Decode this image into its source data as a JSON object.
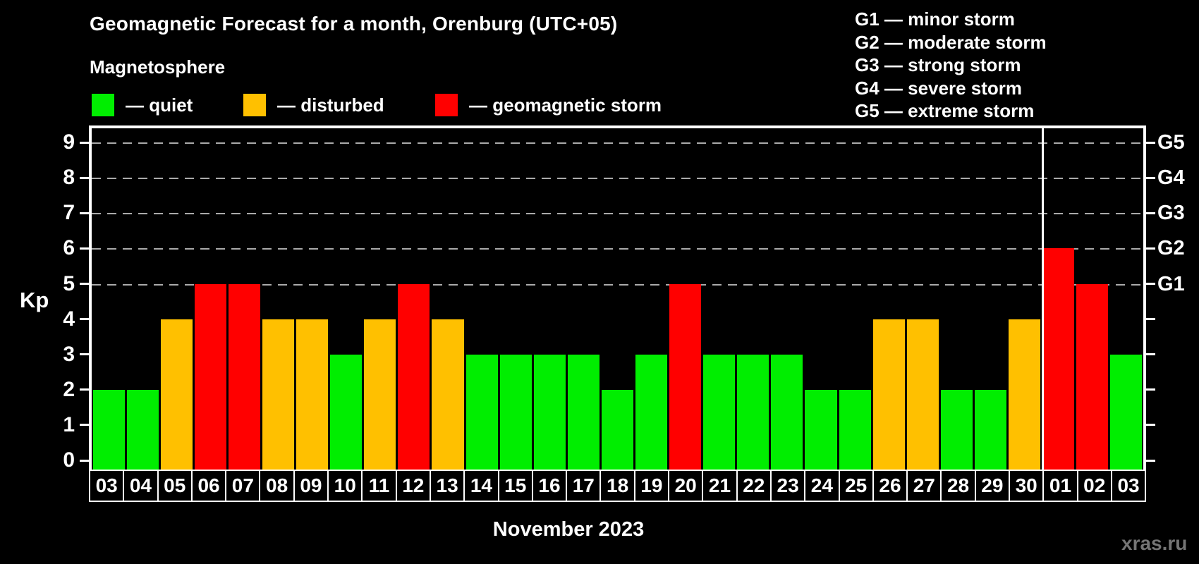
{
  "title": "Geomagnetic Forecast for a month, Orenburg (UTC+05)",
  "subtitle": "Magnetosphere",
  "legend": {
    "items": [
      {
        "key": "quiet",
        "label": "— quiet",
        "x": 130
      },
      {
        "key": "disturbed",
        "label": "— disturbed",
        "x": 345
      },
      {
        "key": "storm",
        "label": "— geomagnetic storm",
        "x": 617
      }
    ]
  },
  "g_legend": [
    "G1 — minor storm",
    "G2 — moderate storm",
    "G3 — strong storm",
    "G4 — severe storm",
    "G5 — extreme storm"
  ],
  "colors": {
    "quiet": "#00ee00",
    "disturbed": "#ffc000",
    "storm": "#ff0000",
    "frame": "#ffffff",
    "grid": "#aaaaaa",
    "background": "#000000",
    "watermark": "#757575"
  },
  "chart_data": {
    "type": "bar",
    "title": "Geomagnetic Forecast for a month, Orenburg (UTC+05)",
    "ylabel": "Kp",
    "xlabel": "November 2023",
    "ylim": [
      0,
      9
    ],
    "yticks": [
      0,
      1,
      2,
      3,
      4,
      5,
      6,
      7,
      8,
      9
    ],
    "gridlines_kp": [
      5,
      6,
      7,
      8,
      9
    ],
    "grid_style": "dashed horizontal gray lines at Kp 5..9 only",
    "legend_position": "top-left (Magnetosphere) and top-right (G-scale)",
    "right_axis": [
      {
        "label": "G1",
        "kp": 5
      },
      {
        "label": "G2",
        "kp": 6
      },
      {
        "label": "G3",
        "kp": 7
      },
      {
        "label": "G4",
        "kp": 8
      },
      {
        "label": "G5",
        "kp": 9
      }
    ],
    "categories": [
      "03",
      "04",
      "05",
      "06",
      "07",
      "08",
      "09",
      "10",
      "11",
      "12",
      "13",
      "14",
      "15",
      "16",
      "17",
      "18",
      "19",
      "20",
      "21",
      "22",
      "23",
      "24",
      "25",
      "26",
      "27",
      "28",
      "29",
      "30",
      "01",
      "02",
      "03"
    ],
    "values": [
      2,
      2,
      4,
      5,
      5,
      4,
      4,
      3,
      4,
      5,
      4,
      3,
      3,
      3,
      3,
      2,
      3,
      5,
      3,
      3,
      3,
      2,
      2,
      4,
      4,
      2,
      2,
      4,
      6,
      5,
      3
    ],
    "statuses": [
      "quiet",
      "quiet",
      "disturbed",
      "storm",
      "storm",
      "disturbed",
      "disturbed",
      "quiet",
      "disturbed",
      "storm",
      "disturbed",
      "quiet",
      "quiet",
      "quiet",
      "quiet",
      "quiet",
      "quiet",
      "storm",
      "quiet",
      "quiet",
      "quiet",
      "quiet",
      "quiet",
      "disturbed",
      "disturbed",
      "quiet",
      "quiet",
      "disturbed",
      "storm",
      "storm",
      "quiet"
    ],
    "month_separator_after_index": 27
  },
  "watermark": "xras.ru"
}
